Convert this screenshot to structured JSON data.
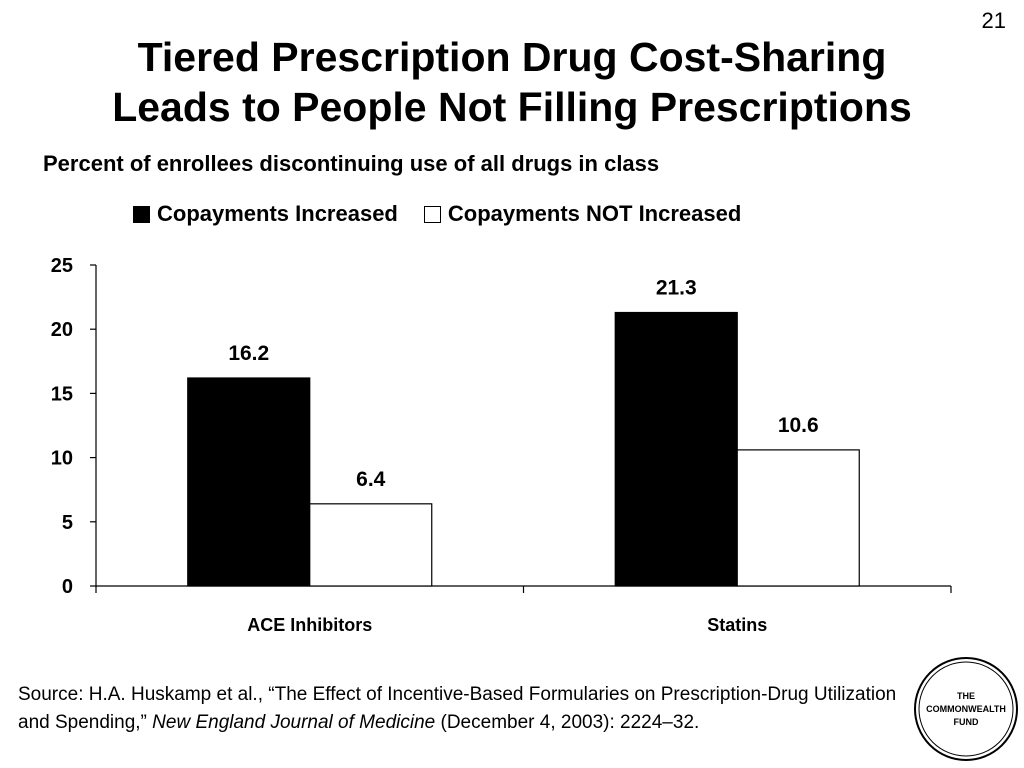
{
  "slide_number": "21",
  "title_lines": [
    "Tiered Prescription Drug Cost-Sharing",
    "Leads to People Not Filling Prescriptions"
  ],
  "subtitle": "Percent of enrollees discontinuing use of all drugs in class",
  "colors": {
    "series_increased": "#000000",
    "series_not_increased": "#ffffff",
    "axis": "#000000"
  },
  "chart_data": {
    "type": "bar",
    "categories": [
      "ACE Inhibitors",
      "Statins"
    ],
    "series": [
      {
        "name": "Copayments Increased",
        "values": [
          16.2,
          21.3
        ],
        "labels": [
          "16.2",
          "21.3"
        ]
      },
      {
        "name": "Copayments NOT Increased",
        "values": [
          6.4,
          10.6
        ],
        "labels": [
          "6.4",
          "10.6"
        ]
      }
    ],
    "ylim": [
      0,
      25
    ],
    "yticks": [
      "0",
      "5",
      "10",
      "15",
      "20",
      "25"
    ],
    "xlabel": "",
    "ylabel": "",
    "grid": false,
    "legend_position": "top"
  },
  "source": {
    "prefix": "Source: H.A. Huskamp et al., “The Effect of Incentive-Based Formularies on Prescription-Drug Utilization and Spending,” ",
    "journal": "New England Journal of Medicine",
    "suffix": " (December 4, 2003): 2224–32."
  },
  "logo": {
    "lines": [
      "THE",
      "COMMONWEALTH",
      "FUND"
    ]
  }
}
